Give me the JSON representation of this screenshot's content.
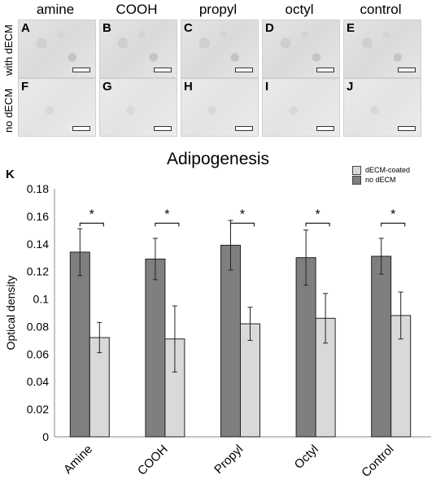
{
  "image_panels": {
    "column_labels": [
      "amine",
      "COOH",
      "propyl",
      "octyl",
      "control"
    ],
    "row_labels": [
      "with dECM",
      "no dECM"
    ],
    "row1_letters": [
      "A",
      "B",
      "C",
      "D",
      "E"
    ],
    "row2_letters": [
      "F",
      "G",
      "H",
      "I",
      "J"
    ]
  },
  "panel_label": "K",
  "colors": {
    "no_decm": "#7f7f7f",
    "decm_coated": "#d9d9d9"
  },
  "chart_data": {
    "type": "bar",
    "title": "Adipogenesis",
    "xlabel": "",
    "ylabel": "Optical density",
    "categories": [
      "Amine",
      "COOH",
      "Propyl",
      "Octyl",
      "Control"
    ],
    "ylim": [
      0,
      0.18
    ],
    "yticks": [
      "0",
      "0.02",
      "0.04",
      "0.06",
      "0.08",
      "0.1",
      "0.12",
      "0.14",
      "0.16",
      "0.18"
    ],
    "series": [
      {
        "name": "no dECM",
        "values": [
          0.134,
          0.129,
          0.139,
          0.13,
          0.131
        ],
        "errors": [
          0.017,
          0.015,
          0.018,
          0.02,
          0.013
        ]
      },
      {
        "name": "dECM-coated",
        "values": [
          0.072,
          0.071,
          0.082,
          0.086,
          0.088
        ],
        "errors": [
          0.011,
          0.024,
          0.012,
          0.018,
          0.017
        ]
      }
    ],
    "significance_label": "*",
    "legend_position": "top-right",
    "grid": false
  }
}
